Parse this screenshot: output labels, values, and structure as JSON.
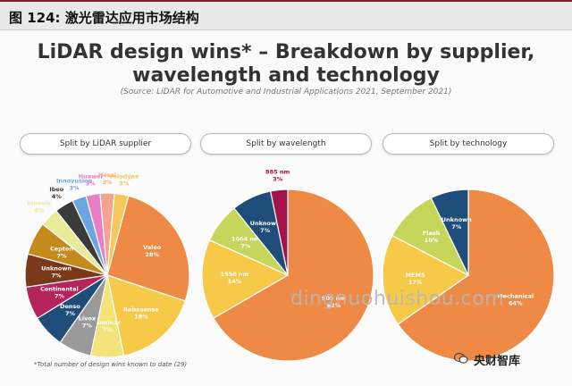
{
  "header": {
    "figure_label": "图 124:  激光雷达应用市场结构"
  },
  "slide": {
    "title_line1": "LiDAR design wins* – Breakdown by supplier,",
    "title_line2": "wavelength and technology",
    "source": "(Source: LiDAR for Automotive and Industrial Applications 2021, September 2021)",
    "footnote": "*Total number of design wins known to date (29)"
  },
  "watermark": "dingnuohuishou.com",
  "wechat_account": "央财智库",
  "chart_data": [
    {
      "type": "pie",
      "title": "Split by LiDAR supplier",
      "slices": [
        {
          "label": "Valeo",
          "value": 28,
          "pct": "28%",
          "color": "#ee8a45"
        },
        {
          "label": "Robosense",
          "value": 18,
          "pct": "18%",
          "color": "#f7c948"
        },
        {
          "label": "Luminar",
          "value": 7,
          "pct": "7%",
          "color": "#f4e27a"
        },
        {
          "label": "Livox",
          "value": 7,
          "pct": "7%",
          "color": "#9a9a9a"
        },
        {
          "label": "Denso",
          "value": 7,
          "pct": "7%",
          "color": "#1e4d7a"
        },
        {
          "label": "Continental",
          "value": 7,
          "pct": "7%",
          "color": "#b5245a"
        },
        {
          "label": "Unknown",
          "value": 7,
          "pct": "7%",
          "color": "#7a3a1a"
        },
        {
          "label": "Cepton",
          "value": 7,
          "pct": "7%",
          "color": "#c48a1e"
        },
        {
          "label": "Innovis",
          "value": 4,
          "pct": "4%",
          "color": "#e8eb9a"
        },
        {
          "label": "Ibeo",
          "value": 4,
          "pct": "4%",
          "color": "#3a3a3a"
        },
        {
          "label": "Innovusion",
          "value": 3,
          "pct": "3%",
          "color": "#6aa6e0"
        },
        {
          "label": "Huawei",
          "value": 3,
          "pct": "3%",
          "color": "#e87ec4"
        },
        {
          "label": "Hesai",
          "value": 3,
          "pct": "3%",
          "color": "#f2a48e"
        },
        {
          "label": "Velodyne",
          "value": 3,
          "pct": "3%",
          "color": "#f4c85a"
        }
      ]
    },
    {
      "type": "pie",
      "title": "Split by wavelength",
      "slices": [
        {
          "label": "905 nm",
          "value": 62,
          "pct": "62%",
          "color": "#ee8a45"
        },
        {
          "label": "1550 nm",
          "value": 14,
          "pct": "14%",
          "color": "#f7c948"
        },
        {
          "label": "1064 nm",
          "value": 7,
          "pct": "7%",
          "color": "#c5d65a"
        },
        {
          "label": "Unknown",
          "value": 7,
          "pct": "7%",
          "color": "#1e4d7a"
        },
        {
          "label": "885 nm",
          "value": 3,
          "pct": "3%",
          "color": "#a3124a"
        }
      ]
    },
    {
      "type": "pie",
      "title": "Split by technology",
      "slices": [
        {
          "label": "Mechanical",
          "value": 64,
          "pct": "64%",
          "color": "#ee8a45"
        },
        {
          "label": "MEMS",
          "value": 17,
          "pct": "17%",
          "color": "#f7c948"
        },
        {
          "label": "Flash",
          "value": 10,
          "pct": "10%",
          "color": "#c5d65a"
        },
        {
          "label": "Unknown",
          "value": 7,
          "pct": "7%",
          "color": "#1e4d7a"
        }
      ]
    }
  ]
}
